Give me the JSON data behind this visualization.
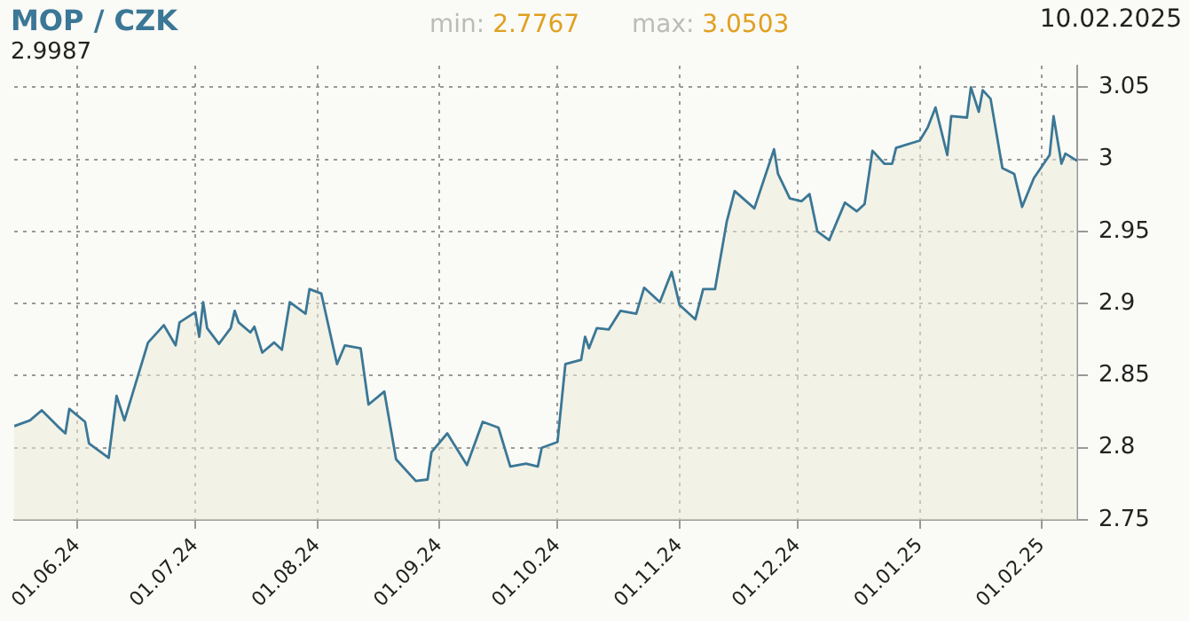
{
  "chart_data": {
    "type": "area",
    "title": "MOP / CZK",
    "annotations": [
      "min: 2.7767",
      "max: 3.0503",
      "10.02.2025",
      "2.9987"
    ],
    "x": [
      "2024-05-16",
      "2024-05-20",
      "2024-05-23",
      "2024-05-27",
      "2024-05-29",
      "2024-05-30",
      "2024-06-03",
      "2024-06-04",
      "2024-06-06",
      "2024-06-09",
      "2024-06-11",
      "2024-06-13",
      "2024-06-17",
      "2024-06-19",
      "2024-06-23",
      "2024-06-26",
      "2024-06-27",
      "2024-07-01",
      "2024-07-02",
      "2024-07-03",
      "2024-07-04",
      "2024-07-07",
      "2024-07-10",
      "2024-07-11",
      "2024-07-12",
      "2024-07-15",
      "2024-07-16",
      "2024-07-18",
      "2024-07-21",
      "2024-07-23",
      "2024-07-25",
      "2024-07-29",
      "2024-07-30",
      "2024-08-02",
      "2024-08-06",
      "2024-08-08",
      "2024-08-12",
      "2024-08-14",
      "2024-08-18",
      "2024-08-21",
      "2024-08-26",
      "2024-08-29",
      "2024-08-30",
      "2024-09-03",
      "2024-09-08",
      "2024-09-12",
      "2024-09-16",
      "2024-09-19",
      "2024-09-23",
      "2024-09-26",
      "2024-09-27",
      "2024-10-01",
      "2024-10-03",
      "2024-10-07",
      "2024-10-08",
      "2024-10-09",
      "2024-10-11",
      "2024-10-14",
      "2024-10-17",
      "2024-10-21",
      "2024-10-23",
      "2024-10-27",
      "2024-10-30",
      "2024-11-01",
      "2024-11-05",
      "2024-11-07",
      "2024-11-10",
      "2024-11-13",
      "2024-11-15",
      "2024-11-20",
      "2024-11-25",
      "2024-11-26",
      "2024-11-29",
      "2024-12-02",
      "2024-12-04",
      "2024-12-06",
      "2024-12-09",
      "2024-12-13",
      "2024-12-16",
      "2024-12-18",
      "2024-12-20",
      "2024-12-23",
      "2024-12-25",
      "2024-12-26",
      "2025-01-01",
      "2025-01-03",
      "2025-01-05",
      "2025-01-08",
      "2025-01-09",
      "2025-01-13",
      "2025-01-14",
      "2025-01-16",
      "2025-01-17",
      "2025-01-19",
      "2025-01-22",
      "2025-01-25",
      "2025-01-27",
      "2025-01-30",
      "2025-01-31",
      "2025-02-03",
      "2025-02-04",
      "2025-02-06",
      "2025-02-07",
      "2025-02-10"
    ],
    "series": [
      {
        "color": "#3b7796",
        "values": [
          2.815,
          2.819,
          2.826,
          2.815,
          2.81,
          2.827,
          2.818,
          2.803,
          2.799,
          2.793,
          2.836,
          2.819,
          2.855,
          2.873,
          2.885,
          2.871,
          2.887,
          2.894,
          2.877,
          2.901,
          2.883,
          2.872,
          2.883,
          2.895,
          2.887,
          2.88,
          2.884,
          2.866,
          2.873,
          2.868,
          2.901,
          2.893,
          2.91,
          2.907,
          2.858,
          2.871,
          2.869,
          2.83,
          2.839,
          2.792,
          2.777,
          2.778,
          2.797,
          2.81,
          2.788,
          2.818,
          2.814,
          2.787,
          2.789,
          2.787,
          2.8,
          2.804,
          2.858,
          2.861,
          2.877,
          2.869,
          2.883,
          2.882,
          2.895,
          2.893,
          2.911,
          2.901,
          2.922,
          2.899,
          2.889,
          2.91,
          2.91,
          2.957,
          2.978,
          2.966,
          3.007,
          2.99,
          2.973,
          2.971,
          2.976,
          2.95,
          2.944,
          2.97,
          2.964,
          2.969,
          3.006,
          2.997,
          2.997,
          3.008,
          3.013,
          3.022,
          3.036,
          3.003,
          3.03,
          3.029,
          3.05,
          3.033,
          3.048,
          3.042,
          2.994,
          2.99,
          2.967,
          2.987,
          2.991,
          3.003,
          3.03,
          2.997,
          3.004,
          2.999
        ]
      }
    ],
    "xlim": [
      "2024-05-16",
      "2025-02-10"
    ],
    "xticks": [
      {
        "value": "2024-06-01",
        "label": "01.06.24"
      },
      {
        "value": "2024-07-01",
        "label": "01.07.24"
      },
      {
        "value": "2024-08-01",
        "label": "01.08.24"
      },
      {
        "value": "2024-09-01",
        "label": "01.09.24"
      },
      {
        "value": "2024-10-01",
        "label": "01.10.24"
      },
      {
        "value": "2024-11-01",
        "label": "01.11.24"
      },
      {
        "value": "2024-12-01",
        "label": "01.12.24"
      },
      {
        "value": "2025-01-01",
        "label": "01.01.25"
      },
      {
        "value": "2025-02-01",
        "label": "01.02.25"
      }
    ],
    "ylim": [
      2.75,
      3.065
    ],
    "yticks": [
      2.75,
      2.8,
      2.85,
      2.9,
      2.95,
      3,
      3.05
    ],
    "grid": true,
    "legend": false,
    "marker": "none",
    "line_style": "solid"
  }
}
